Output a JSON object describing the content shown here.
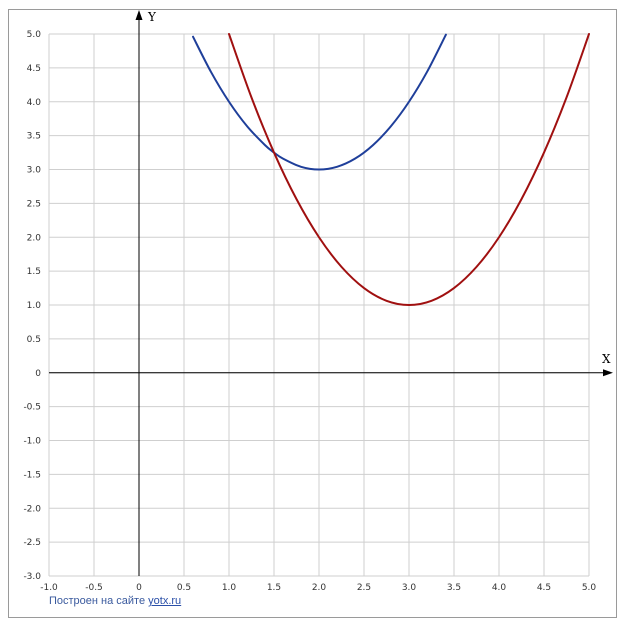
{
  "chart_data": {
    "type": "line",
    "title": "",
    "xlabel": "X",
    "ylabel": "Y",
    "xlim": [
      -1.0,
      5.0
    ],
    "ylim": [
      -3.0,
      5.0
    ],
    "grid": true,
    "x_ticks": [
      -1.0,
      -0.5,
      0,
      0.5,
      1.0,
      1.5,
      2.0,
      2.5,
      3.0,
      3.5,
      4.0,
      4.5,
      5.0
    ],
    "x_tick_labels": [
      "-1.0",
      "-0.5",
      "0",
      "0.5",
      "1.0",
      "1.5",
      "2.0",
      "2.5",
      "3.0",
      "3.5",
      "4.0",
      "4.5",
      "5.0"
    ],
    "y_ticks": [
      5.0,
      4.5,
      4.0,
      3.5,
      3.0,
      2.5,
      2.0,
      1.5,
      1.0,
      0.5,
      0,
      -0.5,
      -1.0,
      -1.5,
      -2.0,
      -2.5,
      -3.0
    ],
    "y_tick_labels": [
      "5.0",
      "4.5",
      "4.0",
      "3.5",
      "3.0",
      "2.5",
      "2.0",
      "1.5",
      "1.0",
      "0.5",
      "0",
      "-0.5",
      "-1.0",
      "-1.5",
      "-2.0",
      "-2.5",
      "-3.0"
    ],
    "series": [
      {
        "color": "#1f3f9a",
        "x": [
          0.6,
          0.8,
          1.0,
          1.2,
          1.4,
          1.5,
          1.6,
          1.8,
          2.0,
          2.2,
          2.4,
          2.6,
          2.8,
          3.0,
          3.2,
          3.41
        ],
        "y": [
          4.96,
          4.44,
          4.0,
          3.64,
          3.36,
          3.25,
          3.16,
          3.04,
          3.0,
          3.04,
          3.16,
          3.36,
          3.64,
          4.0,
          4.44,
          4.99
        ]
      },
      {
        "color": "#a01010",
        "x": [
          1.0,
          1.25,
          1.5,
          1.75,
          2.0,
          2.25,
          2.5,
          2.75,
          3.0,
          3.25,
          3.5,
          3.75,
          4.0,
          4.25,
          4.5,
          4.75,
          5.0
        ],
        "y": [
          5.0,
          4.0625,
          3.25,
          2.5625,
          2.0,
          1.5625,
          1.25,
          1.0625,
          1.0,
          1.0625,
          1.25,
          1.5625,
          2.0,
          2.5625,
          3.25,
          4.0625,
          5.0
        ]
      }
    ]
  },
  "footer": {
    "text": "Построен на сайте",
    "link": "yotx.ru"
  }
}
